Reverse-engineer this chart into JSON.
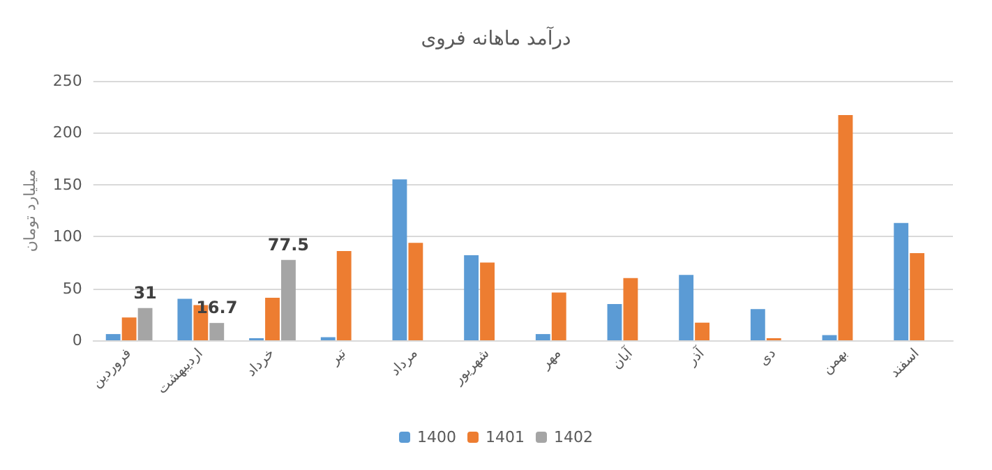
{
  "chart_data": {
    "type": "bar",
    "title": "درآمد ماهانه فروی",
    "ylabel": "میلیارد تومان",
    "categories": [
      "فروردین",
      "اردیبهشت",
      "خرداد",
      "تیر",
      "مرداد",
      "شهریور",
      "مهر",
      "آبان",
      "آذر",
      "دی",
      "بهمن",
      "اسفند"
    ],
    "series": [
      {
        "name": "1400",
        "color": "#5b9bd5",
        "values": [
          6,
          40,
          2,
          3,
          155,
          82,
          6,
          35,
          63,
          30,
          5,
          113
        ]
      },
      {
        "name": "1401",
        "color": "#ed7d31",
        "values": [
          22,
          34,
          41,
          86,
          94,
          75,
          46,
          60,
          17,
          2,
          217,
          84
        ]
      },
      {
        "name": "1402",
        "color": "#a5a5a5",
        "values": [
          31,
          16.7,
          77.5,
          null,
          null,
          null,
          null,
          null,
          null,
          null,
          null,
          null
        ],
        "value_labels": [
          "31",
          "16.7",
          "77.5",
          null,
          null,
          null,
          null,
          null,
          null,
          null,
          null,
          null
        ]
      }
    ],
    "ylim": [
      0,
      250
    ],
    "yticks": [
      0,
      50,
      100,
      150,
      200,
      250
    ],
    "grid": "y",
    "legend": "bottom"
  }
}
